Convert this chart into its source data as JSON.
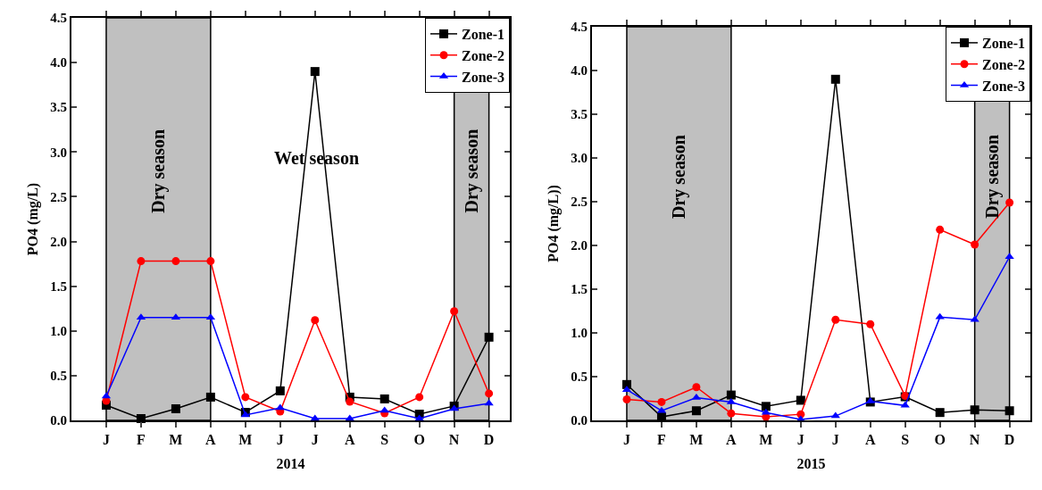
{
  "chart_data": [
    {
      "type": "line",
      "xlabel": "2014",
      "ylabel": "PO4 (mg/L)",
      "categories": [
        "J",
        "F",
        "M",
        "A",
        "M",
        "J",
        "J",
        "A",
        "S",
        "O",
        "N",
        "D"
      ],
      "series": [
        {
          "name": "Zone-1",
          "color": "#000000",
          "marker": "square",
          "values": [
            0.17,
            0.02,
            0.13,
            0.26,
            0.09,
            0.33,
            3.9,
            0.26,
            0.24,
            0.07,
            0.16,
            0.93
          ]
        },
        {
          "name": "Zone-2",
          "color": "#ff0000",
          "marker": "circle",
          "values": [
            0.22,
            1.78,
            1.78,
            1.78,
            0.26,
            0.1,
            1.12,
            0.21,
            0.08,
            0.26,
            1.22,
            0.3
          ]
        },
        {
          "name": "Zone-3",
          "color": "#0000ff",
          "marker": "triangle",
          "values": [
            0.27,
            1.15,
            1.15,
            1.15,
            0.06,
            0.14,
            0.02,
            0.02,
            0.11,
            0.02,
            0.13,
            0.19
          ]
        }
      ],
      "ylim": [
        0,
        4.5
      ],
      "yticks": [
        {
          "value": 0,
          "label": "0.0"
        },
        {
          "value": 0.5,
          "label": "0.5"
        },
        {
          "value": 1,
          "label": "1.0"
        },
        {
          "value": 1.5,
          "label": "1.5"
        },
        {
          "value": 2,
          "label": "2.0"
        },
        {
          "value": 2.5,
          "label": "2.5"
        },
        {
          "value": 3,
          "label": "3.0"
        },
        {
          "value": 3.5,
          "label": "3.5"
        },
        {
          "value": 4,
          "label": "4.0"
        },
        {
          "value": 4.5,
          "label": "4.5"
        }
      ],
      "bands": [
        {
          "axis": "x",
          "from": "J",
          "to": "A",
          "label": "Dry season",
          "color": "#c0c0c0"
        },
        {
          "axis": "x",
          "from": "N",
          "to": "D",
          "label": "Dry season",
          "color": "#c0c0c0"
        }
      ],
      "annotations": [
        "Wet season"
      ],
      "grid": false,
      "legend": "top right"
    },
    {
      "type": "line",
      "xlabel": "2015",
      "ylabel": "PO4 (mg/L))",
      "categories": [
        "J",
        "F",
        "M",
        "A",
        "M",
        "J",
        "J",
        "A",
        "S",
        "O",
        "N",
        "D"
      ],
      "series": [
        {
          "name": "Zone-1",
          "color": "#000000",
          "marker": "square",
          "values": [
            0.41,
            0.04,
            0.11,
            0.29,
            0.16,
            0.23,
            3.9,
            0.21,
            0.27,
            0.09,
            0.12,
            0.11
          ]
        },
        {
          "name": "Zone-2",
          "color": "#ff0000",
          "marker": "circle",
          "values": [
            0.24,
            0.21,
            0.38,
            0.08,
            0.04,
            0.07,
            1.15,
            1.1,
            0.28,
            2.18,
            2.01,
            2.49
          ]
        },
        {
          "name": "Zone-3",
          "color": "#0000ff",
          "marker": "triangle",
          "values": [
            0.35,
            0.11,
            0.26,
            0.21,
            0.09,
            0.01,
            0.05,
            0.22,
            0.17,
            1.18,
            1.15,
            1.87
          ]
        }
      ],
      "ylim": [
        0,
        4.5
      ],
      "yticks": [
        {
          "value": 0,
          "label": "0.0"
        },
        {
          "value": 0.5,
          "label": "0.5"
        },
        {
          "value": 1,
          "label": "1.0"
        },
        {
          "value": 1.5,
          "label": "1.5"
        },
        {
          "value": 2,
          "label": "2.0"
        },
        {
          "value": 2.5,
          "label": "2.5"
        },
        {
          "value": 3,
          "label": "3.0"
        },
        {
          "value": 3.5,
          "label": "3.5"
        },
        {
          "value": 4,
          "label": "4.0"
        },
        {
          "value": 4.5,
          "label": "4.5"
        }
      ],
      "bands": [
        {
          "axis": "x",
          "from": "J",
          "to": "A",
          "label": "Dry season",
          "color": "#c0c0c0"
        },
        {
          "axis": "x",
          "from": "N",
          "to": "D",
          "label": "Dry season",
          "color": "#c0c0c0"
        }
      ],
      "grid": false,
      "legend": "top right"
    }
  ]
}
